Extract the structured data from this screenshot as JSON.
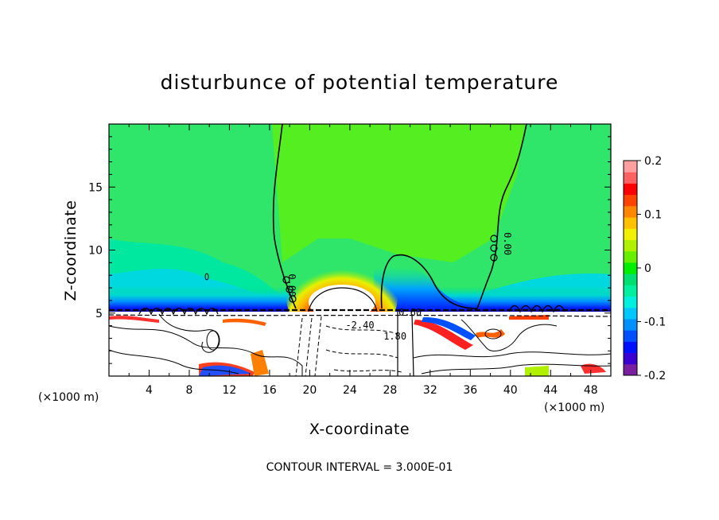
{
  "chart_data": {
    "type": "heatmap",
    "title": "disturbunce of potential temperature",
    "xlabel": "X-coordinate",
    "ylabel": "Z-coordinate",
    "x_unit": "(×1000 m)",
    "x_unit_right": "(×1000 m)",
    "x_ticks": [
      4,
      8,
      12,
      16,
      20,
      24,
      28,
      32,
      36,
      40,
      44,
      48
    ],
    "x_tick_labels": [
      "4",
      "8",
      "12",
      "16",
      "20",
      "24",
      "28",
      "32",
      "36",
      "40",
      "44",
      "48"
    ],
    "y_ticks": [
      5,
      10,
      15
    ],
    "y_tick_labels": [
      "5",
      "10",
      "15"
    ],
    "xlim": [
      0,
      50
    ],
    "ylim": [
      0,
      20
    ],
    "contour_interval_text": "CONTOUR INTERVAL = 3.000E-01",
    "contour_labels": [
      {
        "text": "0.00",
        "x": 17.9,
        "z": 7.2
      },
      {
        "text": "0.00",
        "x": 39.4,
        "z": 10.5
      },
      {
        "text": "0.60",
        "x": 30.0,
        "z": 4.8
      },
      {
        "text": "-2.40",
        "x": 25.0,
        "z": 3.8
      },
      {
        "text": "1.80",
        "x": 28.5,
        "z": 2.9
      }
    ],
    "colorbar": {
      "ticks": [
        0.2,
        0.1,
        0,
        -0.1,
        -0.2
      ],
      "tick_labels": [
        "0.2",
        "0.1",
        "0",
        "-0.1",
        "-0.2"
      ],
      "range": [
        -0.2,
        0.2
      ],
      "colors": [
        "#7a1fa0",
        "#3a00d0",
        "#0010ff",
        "#0050ff",
        "#0090ff",
        "#00c8ff",
        "#00f0e0",
        "#00f0a0",
        "#00e070",
        "#00ee00",
        "#66f000",
        "#b0f000",
        "#f0f000",
        "#ffc000",
        "#ff8800",
        "#ff4400",
        "#ff0000",
        "#ff6060",
        "#ffa0a0"
      ]
    },
    "field_notes": "warm bubble over x≈20-28 near z≈5-9; contoured turbulent layer below z≈5"
  }
}
